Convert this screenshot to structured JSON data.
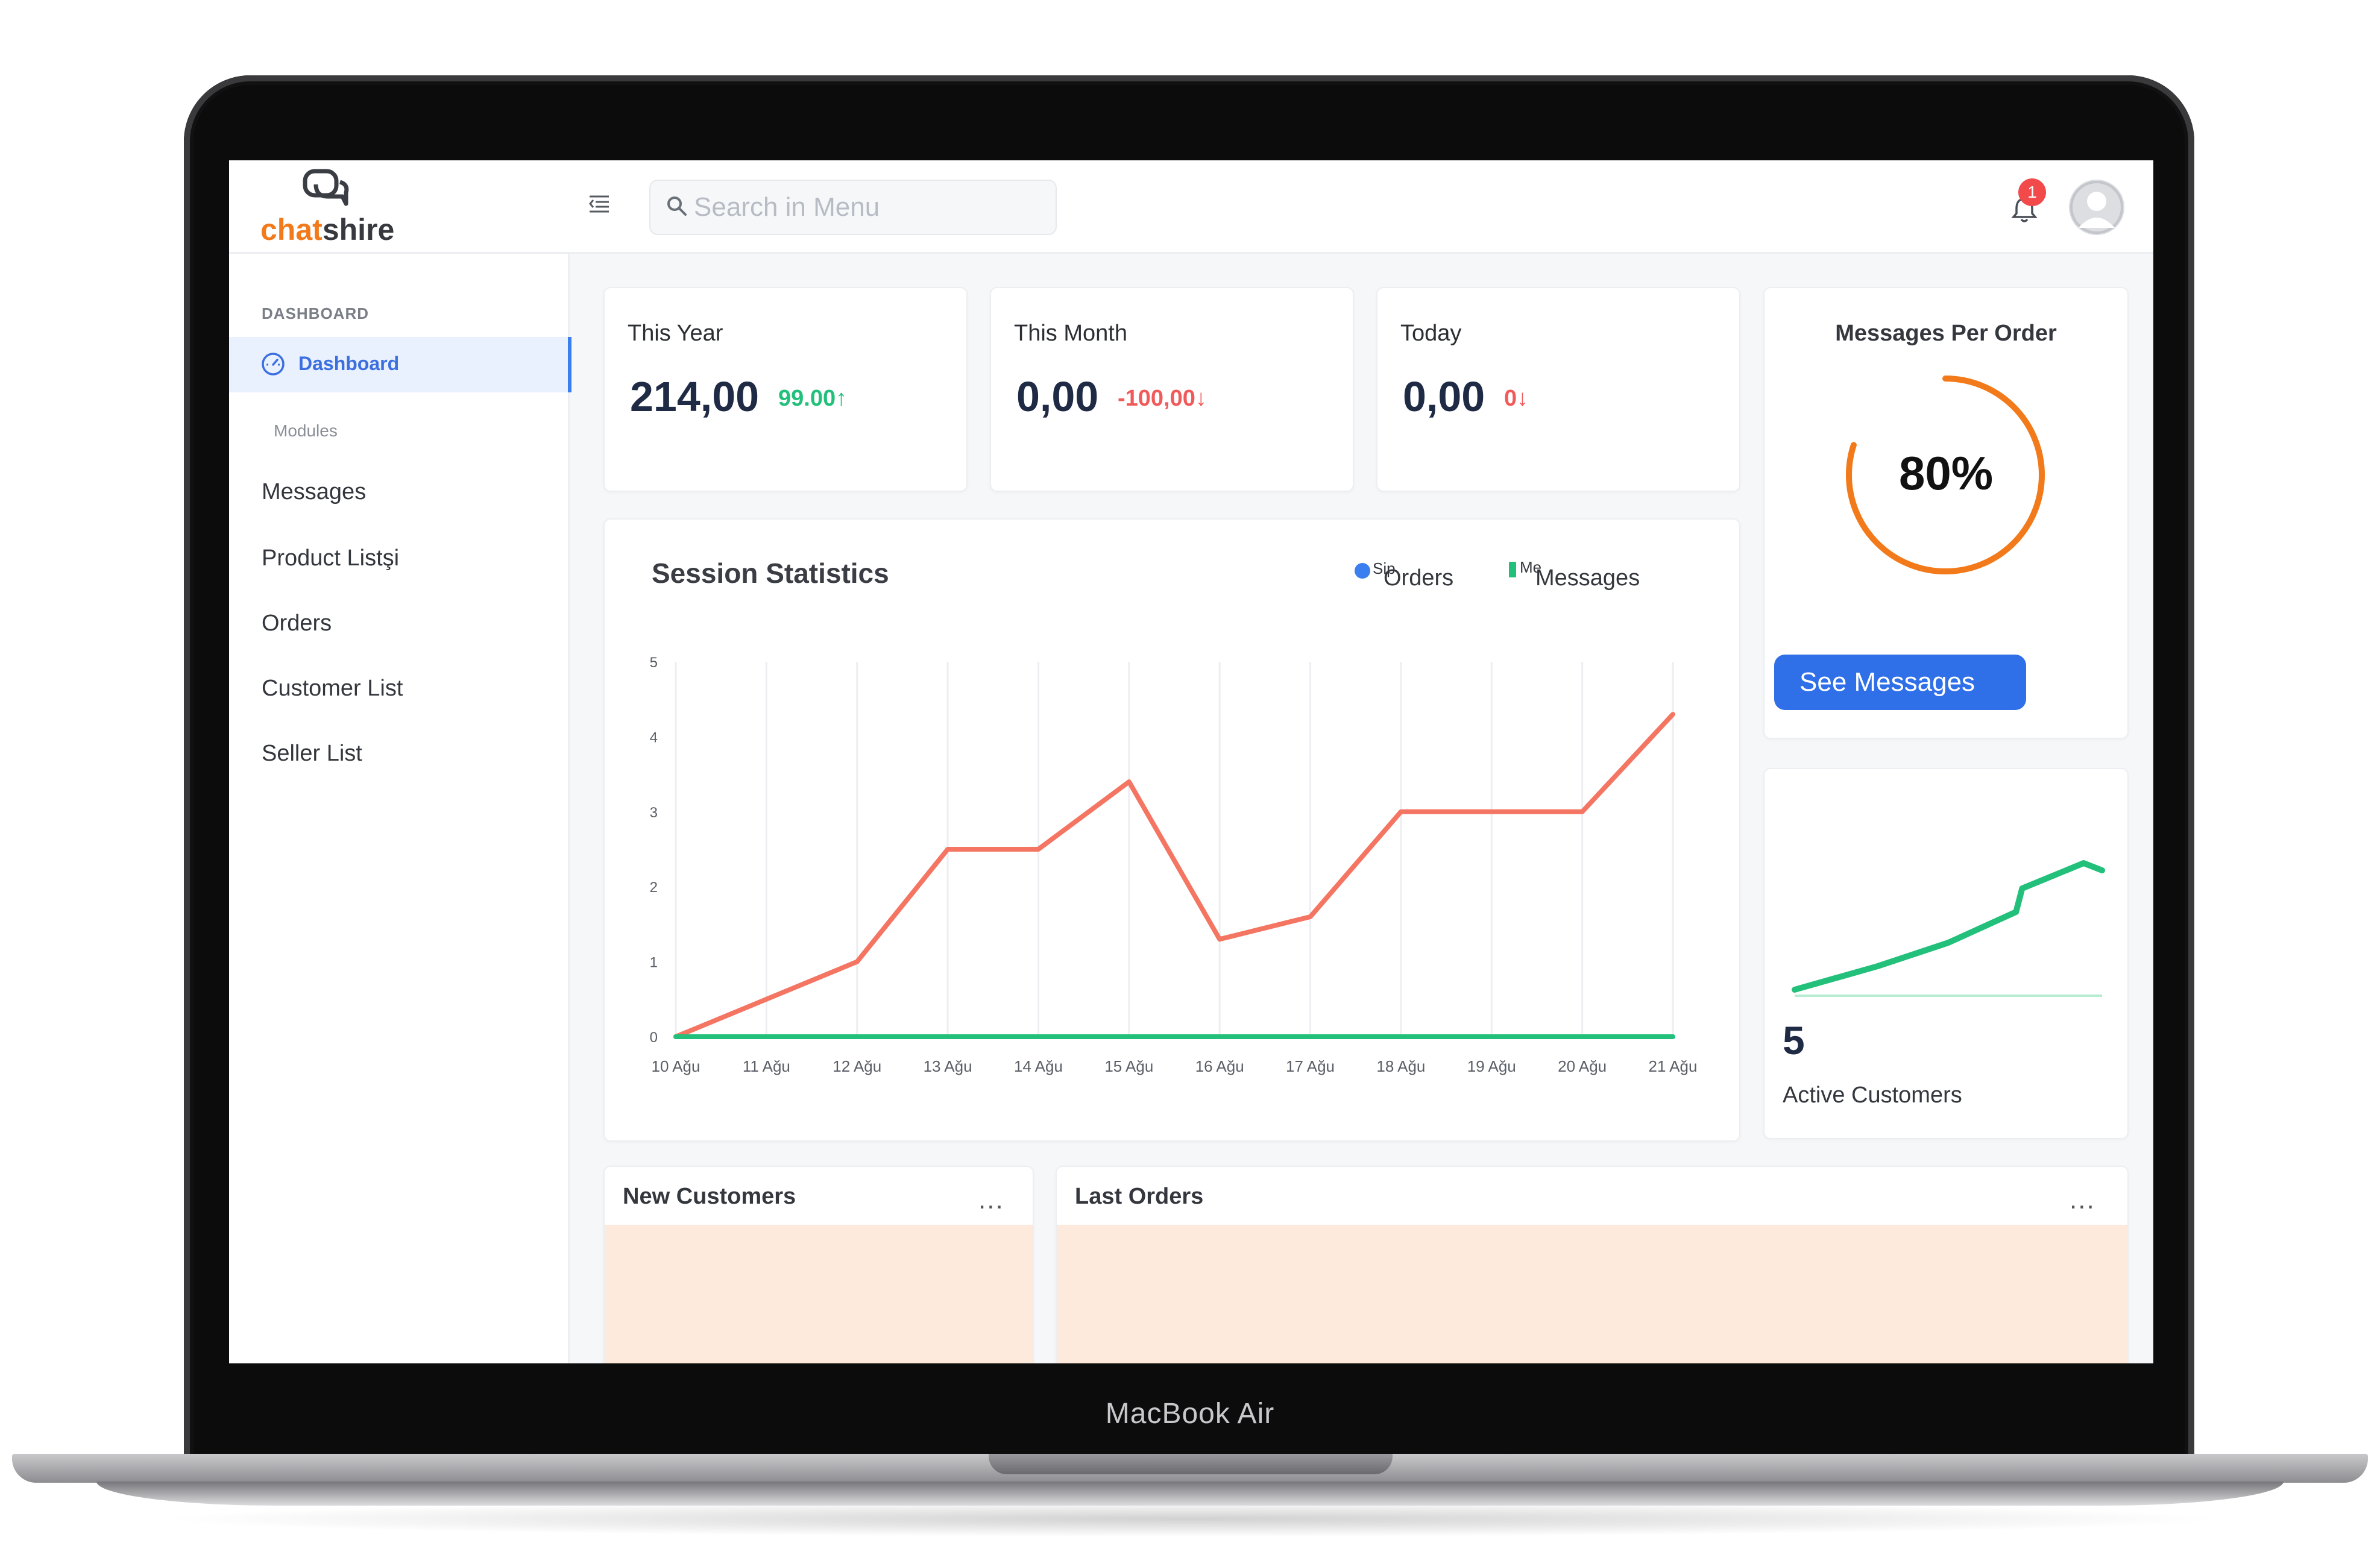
{
  "device": {
    "label": "MacBook Air"
  },
  "app": {
    "logo": {
      "part1": "chat",
      "part2": "shire"
    },
    "colors": {
      "accent": "#3b7ef0",
      "brand_orange": "#f27a1a",
      "up": "#22c07a",
      "down": "#f05a5a"
    }
  },
  "header": {
    "search_placeholder": "Search in Menu",
    "notifications_count": "1"
  },
  "sidebar": {
    "section": "DASHBOARD",
    "active_item": "Dashboard",
    "modules_label": "Modules",
    "items": [
      {
        "label": "Messages"
      },
      {
        "label": "Product Listşi"
      },
      {
        "label": "Orders"
      },
      {
        "label": "Customer List"
      },
      {
        "label": "Seller List"
      }
    ]
  },
  "stats": [
    {
      "title": "This Year",
      "value": "214,00",
      "delta": "99.00↑",
      "trend": "up"
    },
    {
      "title": "This Month",
      "value": "0,00",
      "delta": "-100,00↓",
      "trend": "down"
    },
    {
      "title": "Today",
      "value": "0,00",
      "delta": "0↓",
      "trend": "down"
    }
  ],
  "messages_per_order": {
    "title": "Messages Per Order",
    "percent": 80,
    "label": "80%",
    "button": "See Messages"
  },
  "session": {
    "title": "Session Statistics",
    "legend": [
      {
        "short": "Sip",
        "label": "Orders",
        "color": "#3b7ef0"
      },
      {
        "short": "Me",
        "label": "Messages",
        "color": "#22c07a"
      }
    ]
  },
  "chart_data": {
    "type": "line",
    "x": [
      "10 Ağu",
      "11 Ağu",
      "12 Ağu",
      "13 Ağu",
      "14 Ağu",
      "15 Ağu",
      "16 Ağu",
      "17 Ağu",
      "18 Ağu",
      "19 Ağu",
      "20 Ağu",
      "21 Ağu"
    ],
    "ylim": [
      0,
      5
    ],
    "yticks": [
      0,
      1,
      2,
      3,
      4,
      5
    ],
    "grid": true,
    "series": [
      {
        "color": "#f47562",
        "values": [
          0,
          0.5,
          1,
          2.5,
          2.5,
          3.4,
          1.3,
          1.6,
          3,
          3,
          3,
          4.3
        ]
      },
      {
        "color": "#22c07a",
        "values": [
          0,
          0,
          0,
          0,
          0,
          0,
          0,
          0,
          0,
          0,
          0,
          0
        ]
      }
    ]
  },
  "active_customers": {
    "value": "5",
    "label": "Active Customers",
    "sparkline": [
      0.02,
      0.15,
      0.28,
      0.45,
      0.58,
      0.72
    ]
  },
  "panels": {
    "new_customers": "New Customers",
    "last_orders": "Last Orders",
    "more": "..."
  }
}
